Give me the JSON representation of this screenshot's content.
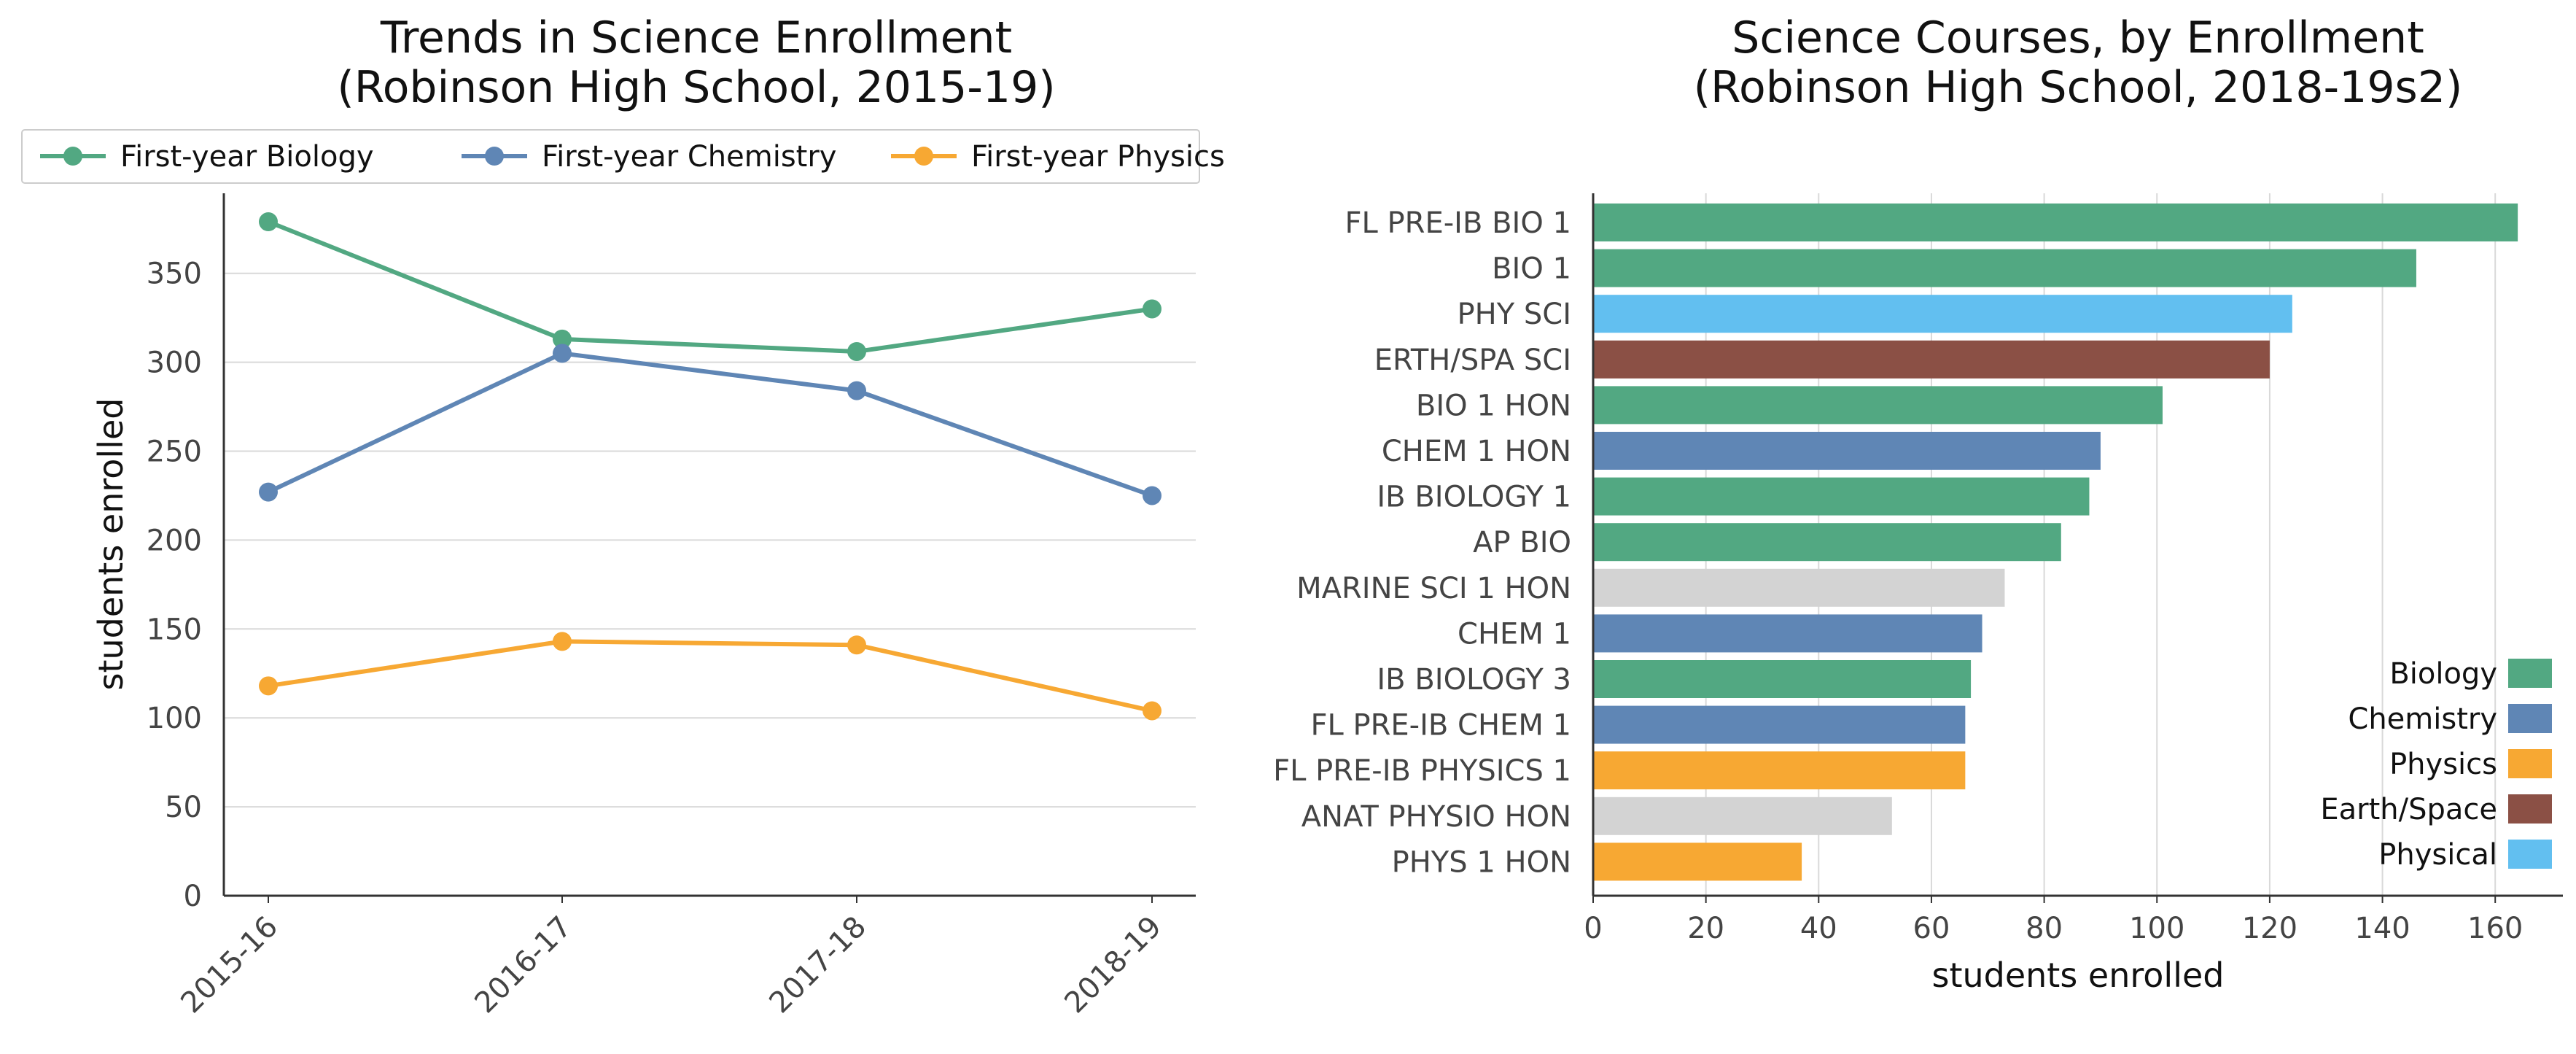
{
  "chart_data": [
    {
      "type": "line",
      "title_lines": [
        "Trends in Science Enrollment",
        "(Robinson High School, 2015-19)"
      ],
      "xlabel": "",
      "ylabel": "students enrolled",
      "categories": [
        "2015-16",
        "2016-17",
        "2017-18",
        "2018-19"
      ],
      "ylim": [
        0,
        395
      ],
      "yticks": [
        0,
        50,
        100,
        150,
        200,
        250,
        300,
        350
      ],
      "grid": "horizontal",
      "legend": "top",
      "series": [
        {
          "name": "First-year Biology",
          "color": "#52a882",
          "values": [
            379,
            313,
            306,
            330
          ]
        },
        {
          "name": "First-year Chemistry",
          "color": "#5f86b5",
          "values": [
            227,
            305,
            284,
            225
          ]
        },
        {
          "name": "First-year Physics",
          "color": "#f7a833",
          "values": [
            118,
            143,
            141,
            104
          ]
        }
      ]
    },
    {
      "type": "bar",
      "orientation": "horizontal",
      "title_lines": [
        "Science Courses, by Enrollment",
        "(Robinson High School, 2018-19s2)"
      ],
      "xlabel": "students enrolled",
      "ylabel": "",
      "xlim": [
        0,
        172
      ],
      "xticks": [
        0,
        20,
        40,
        60,
        80,
        100,
        120,
        140,
        160
      ],
      "grid": "vertical",
      "legend": "lower-right",
      "categories": [
        "FL PRE-IB BIO 1",
        "BIO 1",
        "PHY SCI",
        "ERTH/SPA SCI",
        "BIO 1 HON",
        "CHEM 1 HON",
        "IB BIOLOGY 1",
        "AP BIO",
        "MARINE SCI 1 HON",
        "CHEM 1",
        "IB BIOLOGY 3",
        "FL PRE-IB CHEM 1",
        "FL PRE-IB PHYSICS 1",
        "ANAT PHYSIO HON",
        "PHYS 1 HON"
      ],
      "values": [
        164,
        146,
        124,
        120,
        101,
        90,
        88,
        83,
        73,
        69,
        67,
        66,
        66,
        53,
        37
      ],
      "colors": [
        "#52a882",
        "#52a882",
        "#62bff0",
        "#8b5045",
        "#52a882",
        "#5f86b5",
        "#52a882",
        "#52a882",
        "#d3d3d3",
        "#5f86b5",
        "#52a882",
        "#5f86b5",
        "#f7a833",
        "#d3d3d3",
        "#f7a833"
      ],
      "legend_entries": [
        {
          "name": "Biology",
          "color": "#52a882"
        },
        {
          "name": "Chemistry",
          "color": "#5f86b5"
        },
        {
          "name": "Physics",
          "color": "#f7a833"
        },
        {
          "name": "Earth/Space",
          "color": "#8b5045"
        },
        {
          "name": "Physical",
          "color": "#62bff0"
        }
      ]
    }
  ]
}
